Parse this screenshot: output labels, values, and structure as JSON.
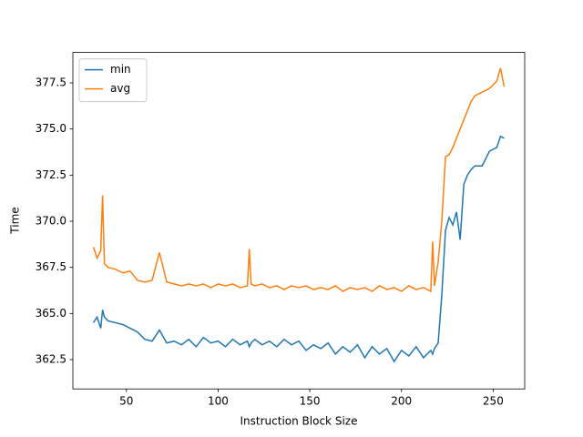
{
  "chart_data": {
    "type": "line",
    "x_label": "Instruction Block Size",
    "y_label": "Time",
    "x": [
      32,
      34,
      36,
      37,
      38,
      40,
      44,
      48,
      52,
      56,
      60,
      64,
      68,
      72,
      76,
      80,
      84,
      88,
      92,
      96,
      100,
      104,
      108,
      112,
      116,
      117,
      118,
      120,
      124,
      128,
      132,
      136,
      140,
      144,
      148,
      152,
      156,
      160,
      164,
      168,
      172,
      176,
      180,
      184,
      188,
      192,
      196,
      200,
      204,
      208,
      212,
      216,
      217,
      218,
      220,
      222,
      224,
      226,
      228,
      230,
      232,
      234,
      236,
      238,
      240,
      244,
      248,
      252,
      254,
      256
    ],
    "series": [
      {
        "name": "min",
        "color": "#1f77b4",
        "values": [
          364.5,
          364.8,
          364.2,
          365.2,
          364.8,
          364.6,
          364.5,
          364.4,
          364.2,
          364.0,
          363.6,
          363.5,
          364.1,
          363.4,
          363.5,
          363.3,
          363.6,
          363.2,
          363.7,
          363.4,
          363.5,
          363.2,
          363.6,
          363.3,
          363.5,
          363.2,
          363.4,
          363.6,
          363.3,
          363.5,
          363.2,
          363.6,
          363.3,
          363.5,
          363.0,
          363.3,
          363.1,
          363.4,
          362.8,
          363.2,
          362.9,
          363.3,
          362.6,
          363.2,
          362.8,
          363.1,
          362.4,
          363.0,
          362.7,
          363.2,
          362.6,
          363.0,
          362.8,
          363.1,
          363.4,
          366.0,
          369.5,
          370.2,
          369.8,
          370.5,
          369.0,
          372.0,
          372.5,
          372.8,
          373.0,
          373.0,
          373.8,
          374.0,
          374.6,
          374.5
        ]
      },
      {
        "name": "avg",
        "color": "#ff7f0e",
        "values": [
          368.6,
          368.0,
          368.4,
          371.4,
          367.7,
          367.5,
          367.4,
          367.2,
          367.3,
          366.8,
          366.7,
          366.8,
          368.3,
          366.7,
          366.6,
          366.5,
          366.6,
          366.5,
          366.6,
          366.4,
          366.6,
          366.5,
          366.6,
          366.4,
          366.5,
          368.5,
          366.6,
          366.5,
          366.6,
          366.4,
          366.5,
          366.3,
          366.5,
          366.4,
          366.5,
          366.3,
          366.4,
          366.3,
          366.5,
          366.2,
          366.4,
          366.3,
          366.4,
          366.2,
          366.5,
          366.3,
          366.4,
          366.2,
          366.5,
          366.3,
          366.4,
          366.2,
          368.9,
          366.5,
          367.8,
          370.0,
          373.5,
          373.6,
          374.0,
          374.5,
          375.0,
          375.5,
          376.0,
          376.5,
          376.8,
          377.0,
          377.2,
          377.6,
          378.3,
          377.3
        ]
      }
    ],
    "xlim": [
      20.8,
      267.2
    ],
    "ylim": [
      360.91,
      379.15
    ],
    "xticks": [
      50,
      100,
      150,
      200,
      250
    ],
    "yticks": [
      362.5,
      {
        "value": 365,
        "label": "365.0"
      },
      367.5,
      {
        "value": 370,
        "label": "370.0"
      },
      372.5,
      {
        "value": 375,
        "label": "375.0"
      },
      377.5
    ],
    "legend": "upper left"
  }
}
